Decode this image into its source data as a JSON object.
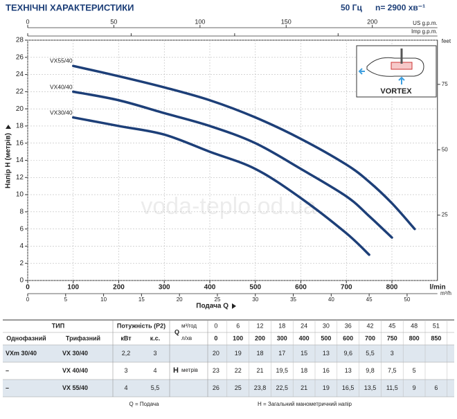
{
  "header": {
    "title": "ТЕХНІЧНІ ХАРАКТЕРИСТИКИ",
    "frequency": "50 Гц",
    "speed": "n= 2900 хв⁻¹"
  },
  "chart_data": {
    "type": "line",
    "xlabel": "Подача Q",
    "ylabel": "Напір H (метрів)",
    "x_unit": "l/min",
    "xlim": [
      0,
      900
    ],
    "xticks": [
      0,
      100,
      200,
      300,
      400,
      500,
      600,
      700,
      800
    ],
    "ylim": [
      0,
      28
    ],
    "yticks": [
      0,
      2,
      4,
      6,
      8,
      10,
      12,
      14,
      16,
      18,
      20,
      22,
      24,
      26,
      28
    ],
    "grid": true,
    "series": [
      {
        "name": "VX55/40",
        "color": "#1d3f78",
        "x": [
          100,
          200,
          300,
          400,
          500,
          600,
          700,
          750,
          800,
          850
        ],
        "values": [
          25,
          23.8,
          22.5,
          21,
          19,
          16.5,
          13.5,
          11.5,
          9,
          6
        ]
      },
      {
        "name": "VX40/40",
        "color": "#1d3f78",
        "x": [
          100,
          200,
          300,
          400,
          500,
          600,
          700,
          750,
          800
        ],
        "values": [
          22,
          21,
          19.5,
          18,
          16,
          13,
          9.8,
          7.5,
          5
        ]
      },
      {
        "name": "VX30/40",
        "color": "#1d3f78",
        "x": [
          100,
          200,
          300,
          400,
          500,
          600,
          700,
          750
        ],
        "values": [
          19,
          18,
          17,
          15,
          13,
          9.6,
          5.5,
          3
        ]
      }
    ],
    "secondary_axes": {
      "top": [
        {
          "label": "US g.p.m.",
          "lim": [
            0,
            237.8
          ],
          "ticks": [
            0,
            50,
            100,
            150,
            200
          ]
        },
        {
          "label": "Imp g.p.m.",
          "lim": [
            0,
            198
          ],
          "ticks": [
            0,
            50,
            100,
            150
          ]
        }
      ],
      "bottom": {
        "label": "m³/h",
        "lim": [
          0,
          54
        ],
        "ticks": [
          0,
          5,
          10,
          15,
          20,
          25,
          30,
          35,
          40,
          45,
          50
        ]
      },
      "right": {
        "label": "feet",
        "lim": [
          0,
          91.9
        ],
        "ticks": [
          25,
          50,
          75
        ]
      }
    },
    "inset_label": "VORTEX",
    "watermark": "voda-teplo.od.ua"
  },
  "table": {
    "type_header": "ТИП",
    "power_header": "Потужність (P2)",
    "q_label": "Q",
    "q_units": [
      "м³/год",
      "л/хв"
    ],
    "q_m3h": [
      "0",
      "6",
      "12",
      "18",
      "24",
      "30",
      "36",
      "42",
      "45",
      "48",
      "51"
    ],
    "q_lmin": [
      "0",
      "100",
      "200",
      "300",
      "400",
      "500",
      "600",
      "700",
      "750",
      "800",
      "850"
    ],
    "subheaders": [
      "Однофазний",
      "Трифазний",
      "кВт",
      "к.с."
    ],
    "h_label": "H",
    "h_unit": "метрів",
    "rows": [
      {
        "single": "VXm 30/40",
        "three": "VX 30/40",
        "kw": "2,2",
        "hp": "3",
        "h": [
          "20",
          "19",
          "18",
          "17",
          "15",
          "13",
          "9,6",
          "5,5",
          "3"
        ]
      },
      {
        "single": "–",
        "three": "VX 40/40",
        "kw": "3",
        "hp": "4",
        "h": [
          "23",
          "22",
          "21",
          "19,5",
          "18",
          "16",
          "13",
          "9,8",
          "7,5",
          "5"
        ]
      },
      {
        "single": "–",
        "three": "VX 55/40",
        "kw": "4",
        "hp": "5,5",
        "h": [
          "26",
          "25",
          "23,8",
          "22,5",
          "21",
          "19",
          "16,5",
          "13,5",
          "11,5",
          "9",
          "6"
        ]
      }
    ]
  },
  "footer": {
    "q": "Q = Подача",
    "h": "H = Загальний манометричний напір"
  }
}
